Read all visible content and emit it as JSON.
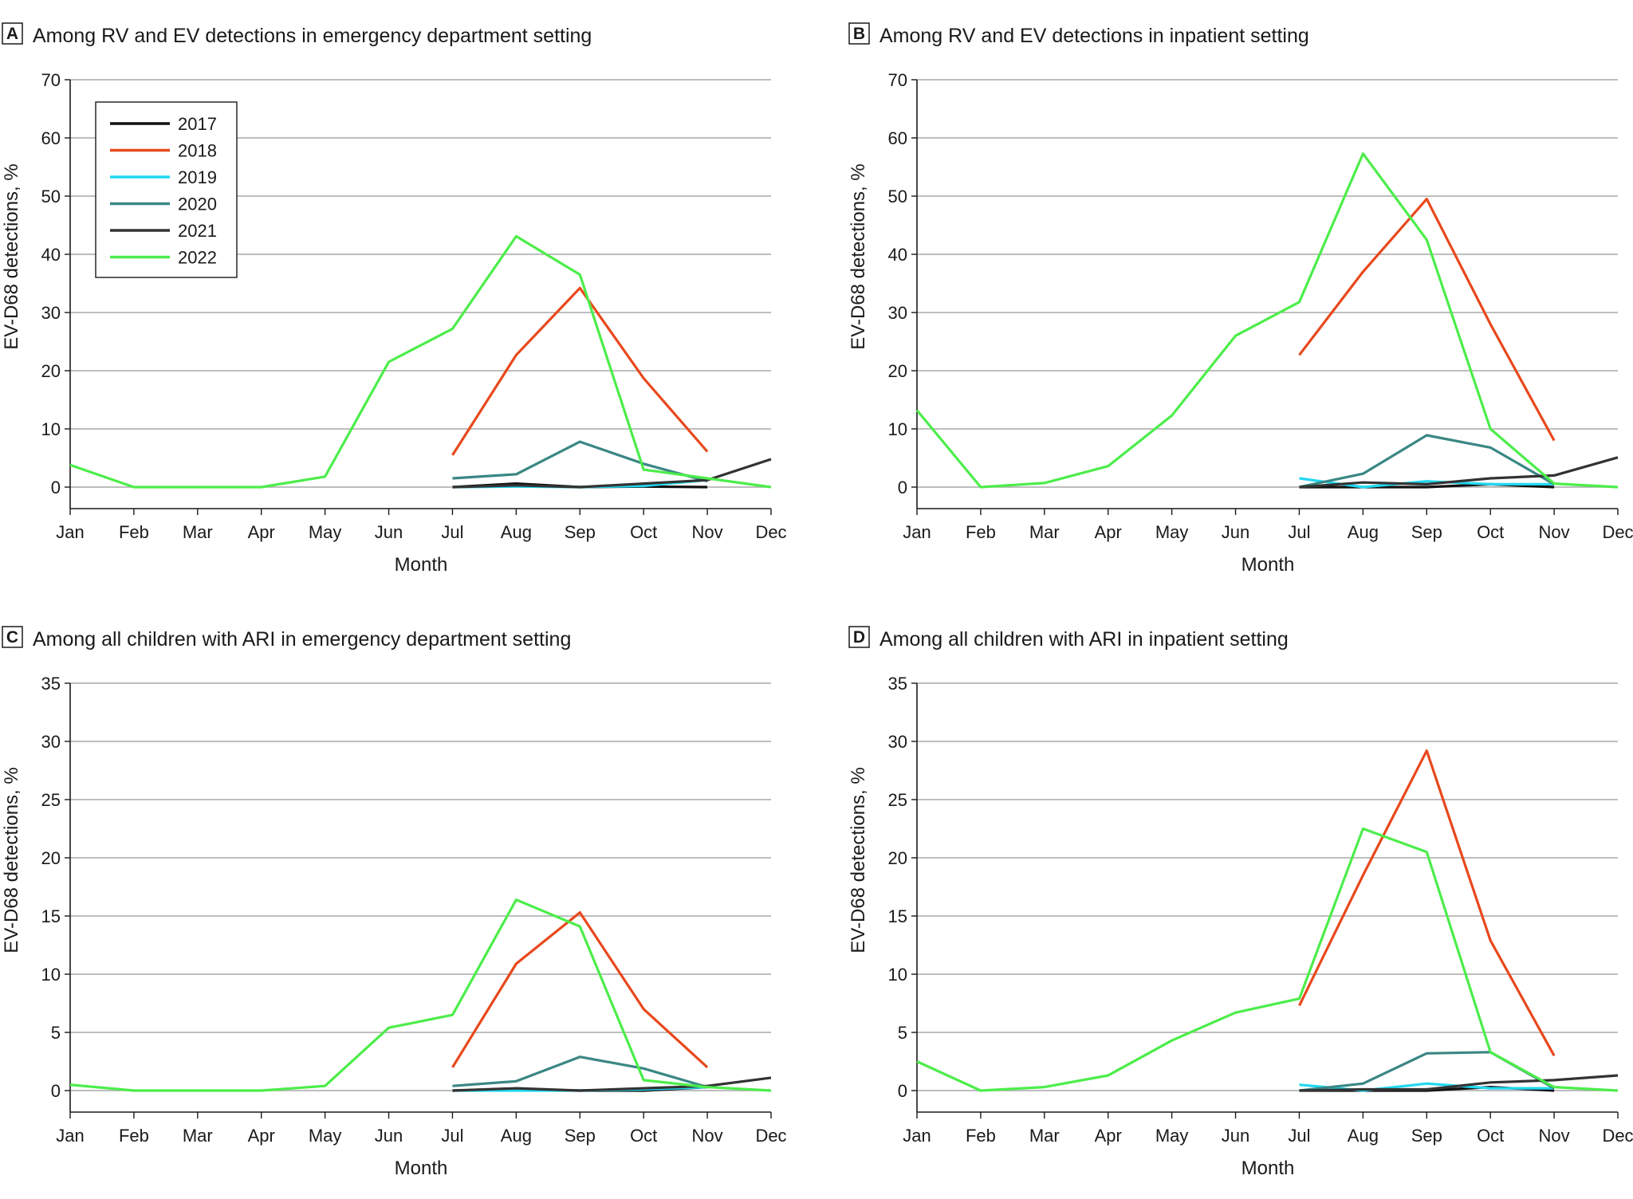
{
  "chart_data": [
    {
      "type": "line",
      "panel_letter": "A",
      "title": "Among RV and EV detections in emergency department setting",
      "xlabel": "Month",
      "ylabel": "EV-D68 detections, %",
      "categories": [
        "Jan",
        "Feb",
        "Mar",
        "Apr",
        "May",
        "Jun",
        "Jul",
        "Aug",
        "Sep",
        "Oct",
        "Nov",
        "Dec"
      ],
      "ylim": [
        0,
        70
      ],
      "yticks": [
        0,
        10,
        20,
        30,
        40,
        50,
        60,
        70
      ],
      "legend": true,
      "series": [
        {
          "name": "2017",
          "color": "#111111",
          "values": [
            null,
            null,
            null,
            null,
            null,
            null,
            0,
            0.6,
            0,
            0.1,
            0,
            null
          ]
        },
        {
          "name": "2018",
          "color": "#e8481c",
          "values": [
            null,
            null,
            null,
            null,
            null,
            null,
            5.5,
            22.7,
            34.2,
            18.7,
            6.1,
            null
          ]
        },
        {
          "name": "2019",
          "color": "#22d8f0",
          "values": [
            null,
            null,
            null,
            null,
            null,
            null,
            0,
            0.1,
            0,
            0.2,
            1.2,
            null
          ]
        },
        {
          "name": "2020",
          "color": "#3a8784",
          "values": [
            null,
            null,
            null,
            null,
            null,
            null,
            1.5,
            2.2,
            7.8,
            4.0,
            1.0,
            null
          ]
        },
        {
          "name": "2021",
          "color": "#333333",
          "values": [
            null,
            null,
            null,
            null,
            null,
            null,
            0,
            0.3,
            0,
            0.6,
            1.2,
            4.8
          ]
        },
        {
          "name": "2022",
          "color": "#4ced4a",
          "values": [
            3.8,
            0,
            0,
            0,
            1.8,
            21.5,
            27.2,
            43.1,
            36.5,
            3.0,
            1.5,
            0
          ]
        }
      ]
    },
    {
      "type": "line",
      "panel_letter": "B",
      "title": "Among RV and EV detections in inpatient setting",
      "xlabel": "Month",
      "ylabel": "EV-D68 detections, %",
      "categories": [
        "Jan",
        "Feb",
        "Mar",
        "Apr",
        "May",
        "Jun",
        "Jul",
        "Aug",
        "Sep",
        "Oct",
        "Nov",
        "Dec"
      ],
      "ylim": [
        0,
        70
      ],
      "yticks": [
        0,
        10,
        20,
        30,
        40,
        50,
        60,
        70
      ],
      "legend": false,
      "series": [
        {
          "name": "2017",
          "color": "#111111",
          "values": [
            null,
            null,
            null,
            null,
            null,
            null,
            0,
            0,
            0,
            0.5,
            0,
            null
          ]
        },
        {
          "name": "2018",
          "color": "#e8481c",
          "values": [
            null,
            null,
            null,
            null,
            null,
            null,
            22.7,
            37.0,
            49.5,
            28.0,
            8.0,
            null
          ]
        },
        {
          "name": "2019",
          "color": "#22d8f0",
          "values": [
            null,
            null,
            null,
            null,
            null,
            null,
            1.5,
            0,
            1.0,
            0.5,
            0.5,
            null
          ]
        },
        {
          "name": "2020",
          "color": "#3a8784",
          "values": [
            null,
            null,
            null,
            null,
            null,
            null,
            0,
            2.3,
            8.9,
            6.8,
            0.5,
            null
          ]
        },
        {
          "name": "2021",
          "color": "#333333",
          "values": [
            null,
            null,
            null,
            null,
            null,
            null,
            0,
            0.8,
            0.5,
            1.5,
            2.0,
            5.1
          ]
        },
        {
          "name": "2022",
          "color": "#4ced4a",
          "values": [
            13.2,
            0,
            0.7,
            3.6,
            12.3,
            26.0,
            31.8,
            57.3,
            42.5,
            10.0,
            0.6,
            0
          ]
        }
      ]
    },
    {
      "type": "line",
      "panel_letter": "C",
      "title": "Among all children with ARI in emergency department setting",
      "xlabel": "Month",
      "ylabel": "EV-D68 detections, %",
      "categories": [
        "Jan",
        "Feb",
        "Mar",
        "Apr",
        "May",
        "Jun",
        "Jul",
        "Aug",
        "Sep",
        "Oct",
        "Nov",
        "Dec"
      ],
      "ylim": [
        0,
        35
      ],
      "yticks": [
        0,
        5,
        10,
        15,
        20,
        25,
        30,
        35
      ],
      "legend": false,
      "series": [
        {
          "name": "2017",
          "color": "#111111",
          "values": [
            null,
            null,
            null,
            null,
            null,
            null,
            0,
            0.1,
            0,
            0,
            0.3,
            null
          ]
        },
        {
          "name": "2018",
          "color": "#e8481c",
          "values": [
            null,
            null,
            null,
            null,
            null,
            null,
            2.0,
            10.9,
            15.3,
            7.0,
            2.0,
            null
          ]
        },
        {
          "name": "2019",
          "color": "#22d8f0",
          "values": [
            null,
            null,
            null,
            null,
            null,
            null,
            0,
            0,
            0,
            0.1,
            0.3,
            null
          ]
        },
        {
          "name": "2020",
          "color": "#3a8784",
          "values": [
            null,
            null,
            null,
            null,
            null,
            null,
            0.4,
            0.8,
            2.9,
            1.9,
            0.3,
            null
          ]
        },
        {
          "name": "2021",
          "color": "#333333",
          "values": [
            null,
            null,
            null,
            null,
            null,
            null,
            0,
            0.2,
            0,
            0.2,
            0.4,
            1.1
          ]
        },
        {
          "name": "2022",
          "color": "#4ced4a",
          "values": [
            0.5,
            0,
            0,
            0,
            0.4,
            5.4,
            6.5,
            16.4,
            14.1,
            0.9,
            0.3,
            0
          ]
        }
      ]
    },
    {
      "type": "line",
      "panel_letter": "D",
      "title": "Among all children with ARI in inpatient setting",
      "xlabel": "Month",
      "ylabel": "EV-D68 detections, %",
      "categories": [
        "Jan",
        "Feb",
        "Mar",
        "Apr",
        "May",
        "Jun",
        "Jul",
        "Aug",
        "Sep",
        "Oct",
        "Nov",
        "Dec"
      ],
      "ylim": [
        0,
        35
      ],
      "yticks": [
        0,
        5,
        10,
        15,
        20,
        25,
        30,
        35
      ],
      "legend": false,
      "series": [
        {
          "name": "2017",
          "color": "#111111",
          "values": [
            null,
            null,
            null,
            null,
            null,
            null,
            0,
            0,
            0,
            0.3,
            0,
            null
          ]
        },
        {
          "name": "2018",
          "color": "#e8481c",
          "values": [
            null,
            null,
            null,
            null,
            null,
            null,
            7.3,
            18.5,
            29.2,
            12.9,
            3.0,
            null
          ]
        },
        {
          "name": "2019",
          "color": "#22d8f0",
          "values": [
            null,
            null,
            null,
            null,
            null,
            null,
            0.5,
            0,
            0.6,
            0.2,
            0.2,
            null
          ]
        },
        {
          "name": "2020",
          "color": "#3a8784",
          "values": [
            null,
            null,
            null,
            null,
            null,
            null,
            0,
            0.6,
            3.2,
            3.3,
            0.2,
            null
          ]
        },
        {
          "name": "2021",
          "color": "#333333",
          "values": [
            null,
            null,
            null,
            null,
            null,
            null,
            0,
            0.1,
            0.1,
            0.7,
            0.9,
            1.3
          ]
        },
        {
          "name": "2022",
          "color": "#4ced4a",
          "values": [
            2.5,
            0,
            0.3,
            1.3,
            4.3,
            6.7,
            7.9,
            22.5,
            20.5,
            3.3,
            0.3,
            0
          ]
        }
      ]
    }
  ]
}
